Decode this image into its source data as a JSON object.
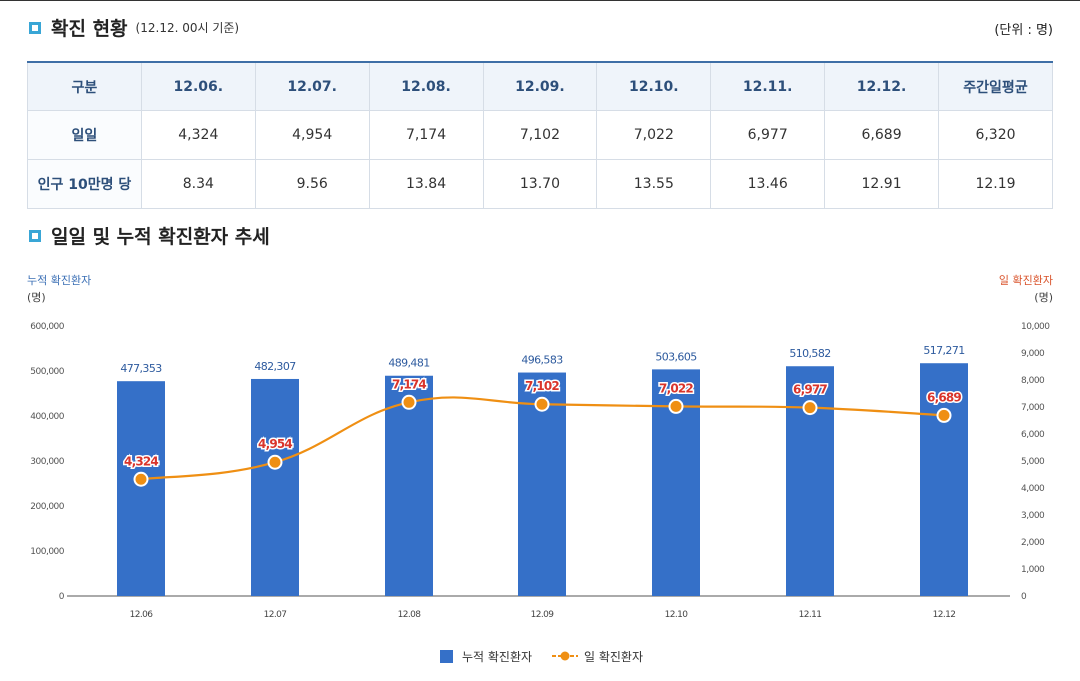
{
  "section1": {
    "title": "확진 현황",
    "subtitle": "(12.12. 00시 기준)",
    "unit": "(단위 : 명)"
  },
  "table": {
    "headers": [
      "구분",
      "12.06.",
      "12.07.",
      "12.08.",
      "12.09.",
      "12.10.",
      "12.11.",
      "12.12.",
      "주간일평균"
    ],
    "rows": [
      [
        "일일",
        "4,324",
        "4,954",
        "7,174",
        "7,102",
        "7,022",
        "6,977",
        "6,689",
        "6,320"
      ],
      [
        "인구 10만명 당",
        "8.34",
        "9.56",
        "13.84",
        "13.70",
        "13.55",
        "13.46",
        "12.91",
        "12.19"
      ]
    ]
  },
  "section2": {
    "title": "일일 및 누적 확진환자 추세"
  },
  "chart_data": {
    "type": "bar",
    "categories": [
      "12.06",
      "12.07",
      "12.08",
      "12.09",
      "12.10",
      "12.11",
      "12.12"
    ],
    "series": [
      {
        "name": "누적 확진환자",
        "type": "bar",
        "axis": "left",
        "color": "#3570c8",
        "values": [
          477353,
          482307,
          489481,
          496583,
          503605,
          510582,
          517271
        ],
        "labels": [
          "477,353",
          "482,307",
          "489,481",
          "496,583",
          "503,605",
          "510,582",
          "517,271"
        ]
      },
      {
        "name": "일 확진환자",
        "type": "line",
        "axis": "right",
        "color": "#ef8f13",
        "values": [
          4324,
          4954,
          7174,
          7102,
          7022,
          6977,
          6689
        ],
        "labels": [
          "4,324",
          "4,954",
          "7,174",
          "7,102",
          "7,022",
          "6,977",
          "6,689"
        ]
      }
    ],
    "left_axis": {
      "title": "누적 확진환자",
      "unit": "(명)",
      "ylim": [
        0,
        600000
      ],
      "ticks": [
        "0",
        "100,000",
        "200,000",
        "300,000",
        "400,000",
        "500,000",
        "600,000"
      ]
    },
    "right_axis": {
      "title": "일 확진환자",
      "unit": "(명)",
      "ylim": [
        0,
        10000
      ],
      "ticks": [
        "0",
        "1,000",
        "2,000",
        "3,000",
        "4,000",
        "5,000",
        "6,000",
        "7,000",
        "8,000",
        "9,000",
        "10,000"
      ]
    },
    "legend": [
      "누적 확진환자",
      "일 확진환자"
    ],
    "legend_position": "bottom",
    "label_color": "#d9342b"
  }
}
